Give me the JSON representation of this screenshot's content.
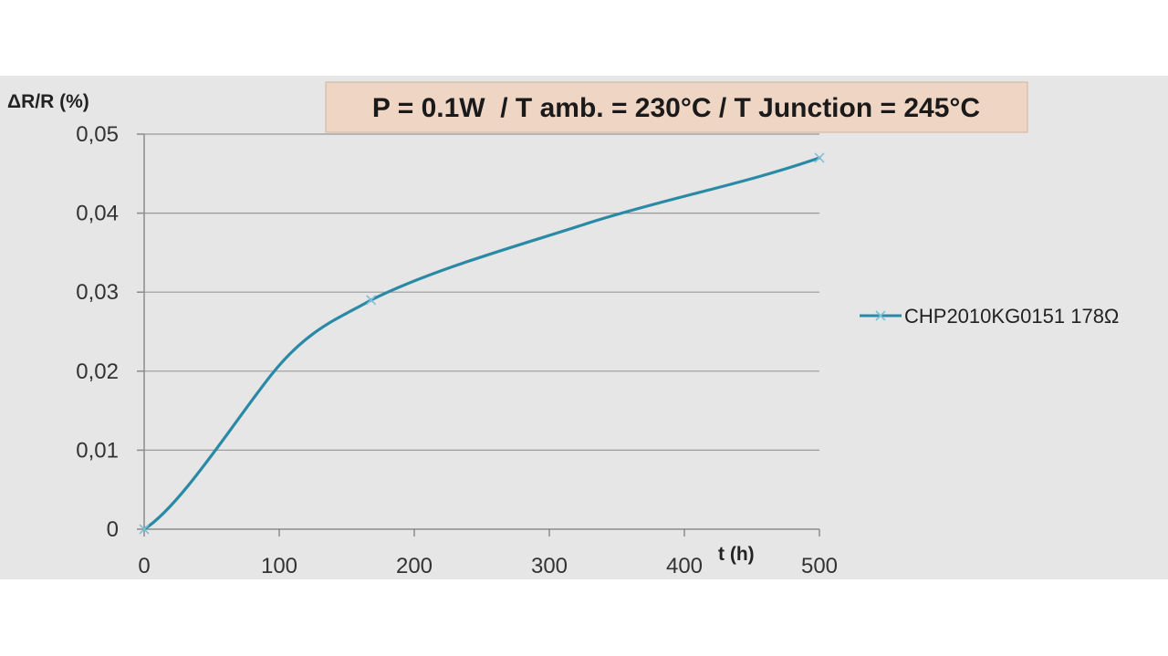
{
  "chart_data": {
    "type": "line",
    "title": "P = 0.1W  / T amb. = 230°C / T Junction = 245°C",
    "xlabel": "t (h)",
    "ylabel": "ΔR/R (%)",
    "xlim": [
      0,
      500
    ],
    "ylim": [
      0,
      0.05
    ],
    "x_ticks": [
      "0",
      "100",
      "200",
      "300",
      "400",
      "500"
    ],
    "y_ticks": [
      "0",
      "0,01",
      "0,02",
      "0,03",
      "0,04",
      "0,05"
    ],
    "grid": true,
    "legend_position": "right",
    "series": [
      {
        "name": "CHP2010KG0151 178Ω",
        "color": "#2a8aa6",
        "marker": "x",
        "points": [
          {
            "x": 0,
            "y": 0
          },
          {
            "x": 168,
            "y": 0.029
          },
          {
            "x": 500,
            "y": 0.047
          }
        ]
      }
    ]
  },
  "colors": {
    "panel_background": "#e6e6e6",
    "title_box": "#efd5c4",
    "grid": "#9a9a9a",
    "axis": "#8c8c8c"
  }
}
